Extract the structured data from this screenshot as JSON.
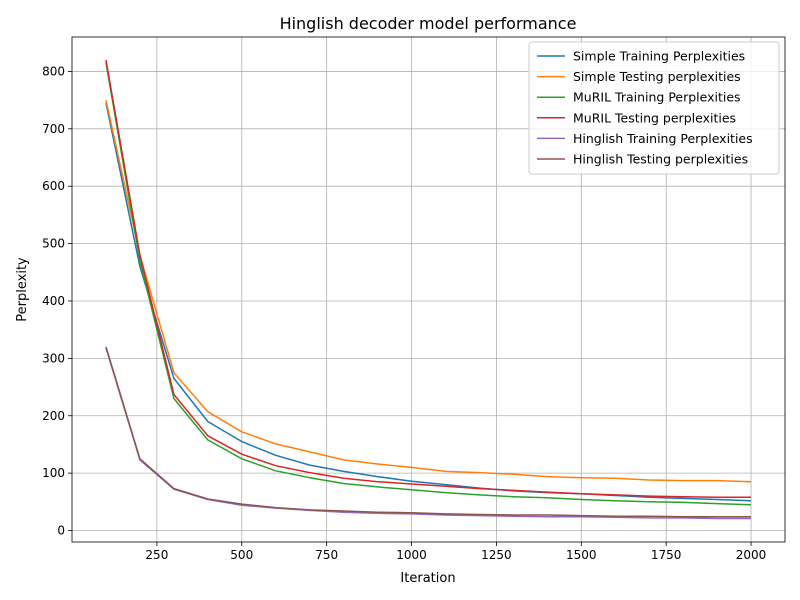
{
  "chart_data": {
    "type": "line",
    "title": "Hinglish decoder model performance",
    "xlabel": "Iteration",
    "ylabel": "Perplexity",
    "xlim": [
      0,
      2100
    ],
    "ylim": [
      -20,
      860
    ],
    "xticks": [
      250,
      500,
      750,
      1000,
      1250,
      1500,
      1750,
      2000
    ],
    "yticks": [
      0,
      100,
      200,
      300,
      400,
      500,
      600,
      700,
      800
    ],
    "grid": true,
    "legend_position": "top-right",
    "x": [
      100,
      200,
      300,
      400,
      500,
      600,
      700,
      800,
      900,
      1000,
      1100,
      1200,
      1300,
      1400,
      1500,
      1600,
      1700,
      1800,
      1900,
      2000
    ],
    "series": [
      {
        "name": "Simple Training Perplexities",
        "color": "#1f77b4",
        "values": [
          745,
          460,
          265,
          190,
          155,
          131,
          114,
          103,
          94,
          86,
          80,
          74,
          69,
          66,
          64,
          61,
          58,
          56,
          54,
          52
        ]
      },
      {
        "name": "Simple Testing perplexities",
        "color": "#ff7f0e",
        "values": [
          750,
          480,
          275,
          207,
          172,
          151,
          137,
          123,
          116,
          110,
          103,
          101,
          98,
          94,
          92,
          91,
          88,
          87,
          87,
          85
        ]
      },
      {
        "name": "MuRIL Training Perplexities",
        "color": "#2ca02c",
        "values": [
          815,
          470,
          230,
          158,
          125,
          104,
          92,
          82,
          76,
          71,
          66,
          62,
          59,
          57,
          54,
          52,
          50,
          49,
          47,
          45
        ]
      },
      {
        "name": "MuRIL Testing perplexities",
        "color": "#d62728",
        "values": [
          820,
          480,
          237,
          165,
          133,
          113,
          101,
          91,
          85,
          81,
          77,
          73,
          70,
          67,
          64,
          62,
          60,
          59,
          58,
          58
        ]
      },
      {
        "name": "Hinglish Training Perplexities",
        "color": "#9467bd",
        "values": [
          318,
          123,
          72,
          54,
          44,
          39,
          35,
          32,
          30,
          29,
          27,
          26,
          25,
          24,
          24,
          23,
          22,
          22,
          21,
          21
        ]
      },
      {
        "name": "Hinglish Testing perplexities",
        "color": "#8c564b",
        "values": [
          320,
          125,
          73,
          55,
          46,
          40,
          36,
          34,
          32,
          31,
          29,
          28,
          27,
          27,
          26,
          25,
          25,
          24,
          24,
          24
        ]
      }
    ]
  }
}
